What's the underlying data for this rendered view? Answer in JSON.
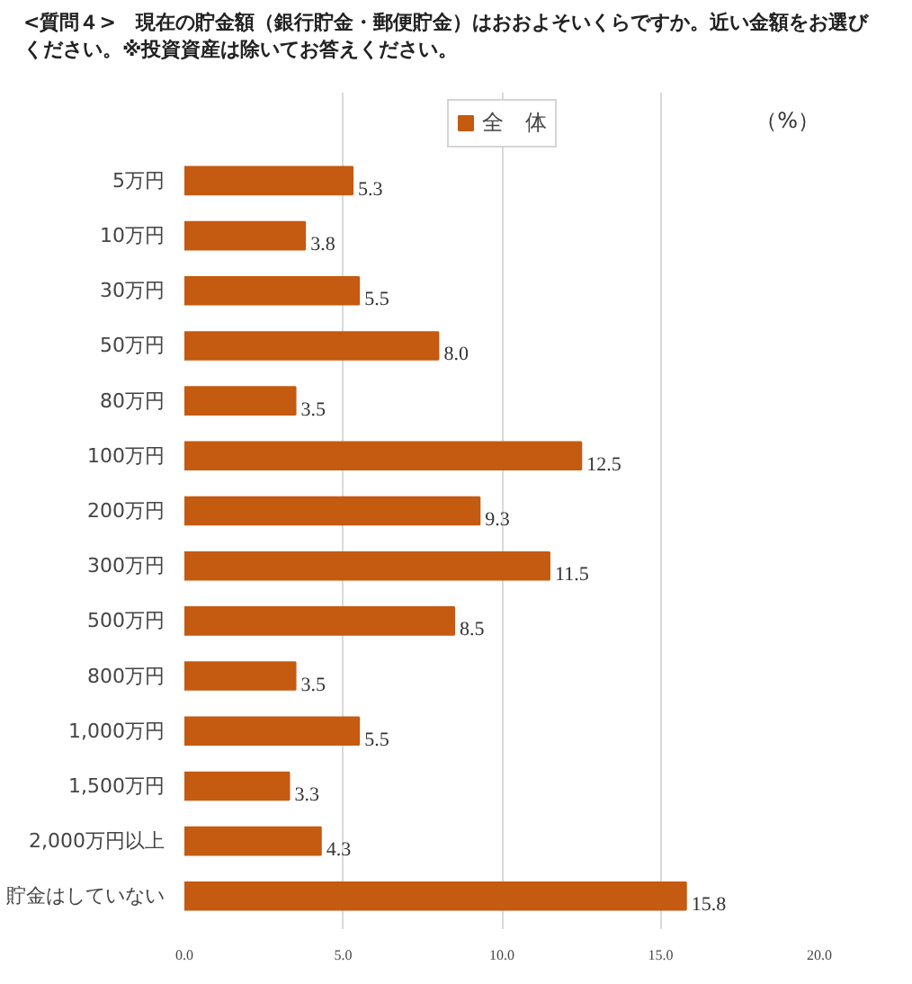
{
  "chart_data": {
    "type": "bar",
    "orientation": "horizontal",
    "title": "<質問４>　現在の貯金額（銀行貯金・郵便貯金）はおおよそいくらですか。近い金額をお選びください。※投資資産は除いてお答えください。",
    "xlabel": "（%）",
    "categories": [
      "5万円",
      "10万円",
      "30万円",
      "50万円",
      "80万円",
      "100万円",
      "200万円",
      "300万円",
      "500万円",
      "800万円",
      "1,000万円",
      "1,500万円",
      "2,000万円以上",
      "貯金はしていない"
    ],
    "series": [
      {
        "name": "全　体",
        "color": "#c55a11",
        "values": [
          5.3,
          3.8,
          5.5,
          8.0,
          3.5,
          12.5,
          9.3,
          11.5,
          8.5,
          3.5,
          5.5,
          3.3,
          4.3,
          15.8
        ]
      }
    ],
    "value_labels": [
      "5.3",
      "3.8",
      "5.5",
      "8.0",
      "3.5",
      "12.5",
      "9.3",
      "11.5",
      "8.5",
      "3.5",
      "5.5",
      "3.3",
      "4.3",
      "15.8"
    ],
    "xlim": [
      0,
      20
    ],
    "xticks": [
      {
        "value": 0,
        "label": "0.0"
      },
      {
        "value": 5,
        "label": "5.0"
      },
      {
        "value": 10,
        "label": "10.0"
      },
      {
        "value": 15,
        "label": "15.0"
      },
      {
        "value": 20,
        "label": "20.0"
      }
    ],
    "grid": "x",
    "legend": "top"
  }
}
